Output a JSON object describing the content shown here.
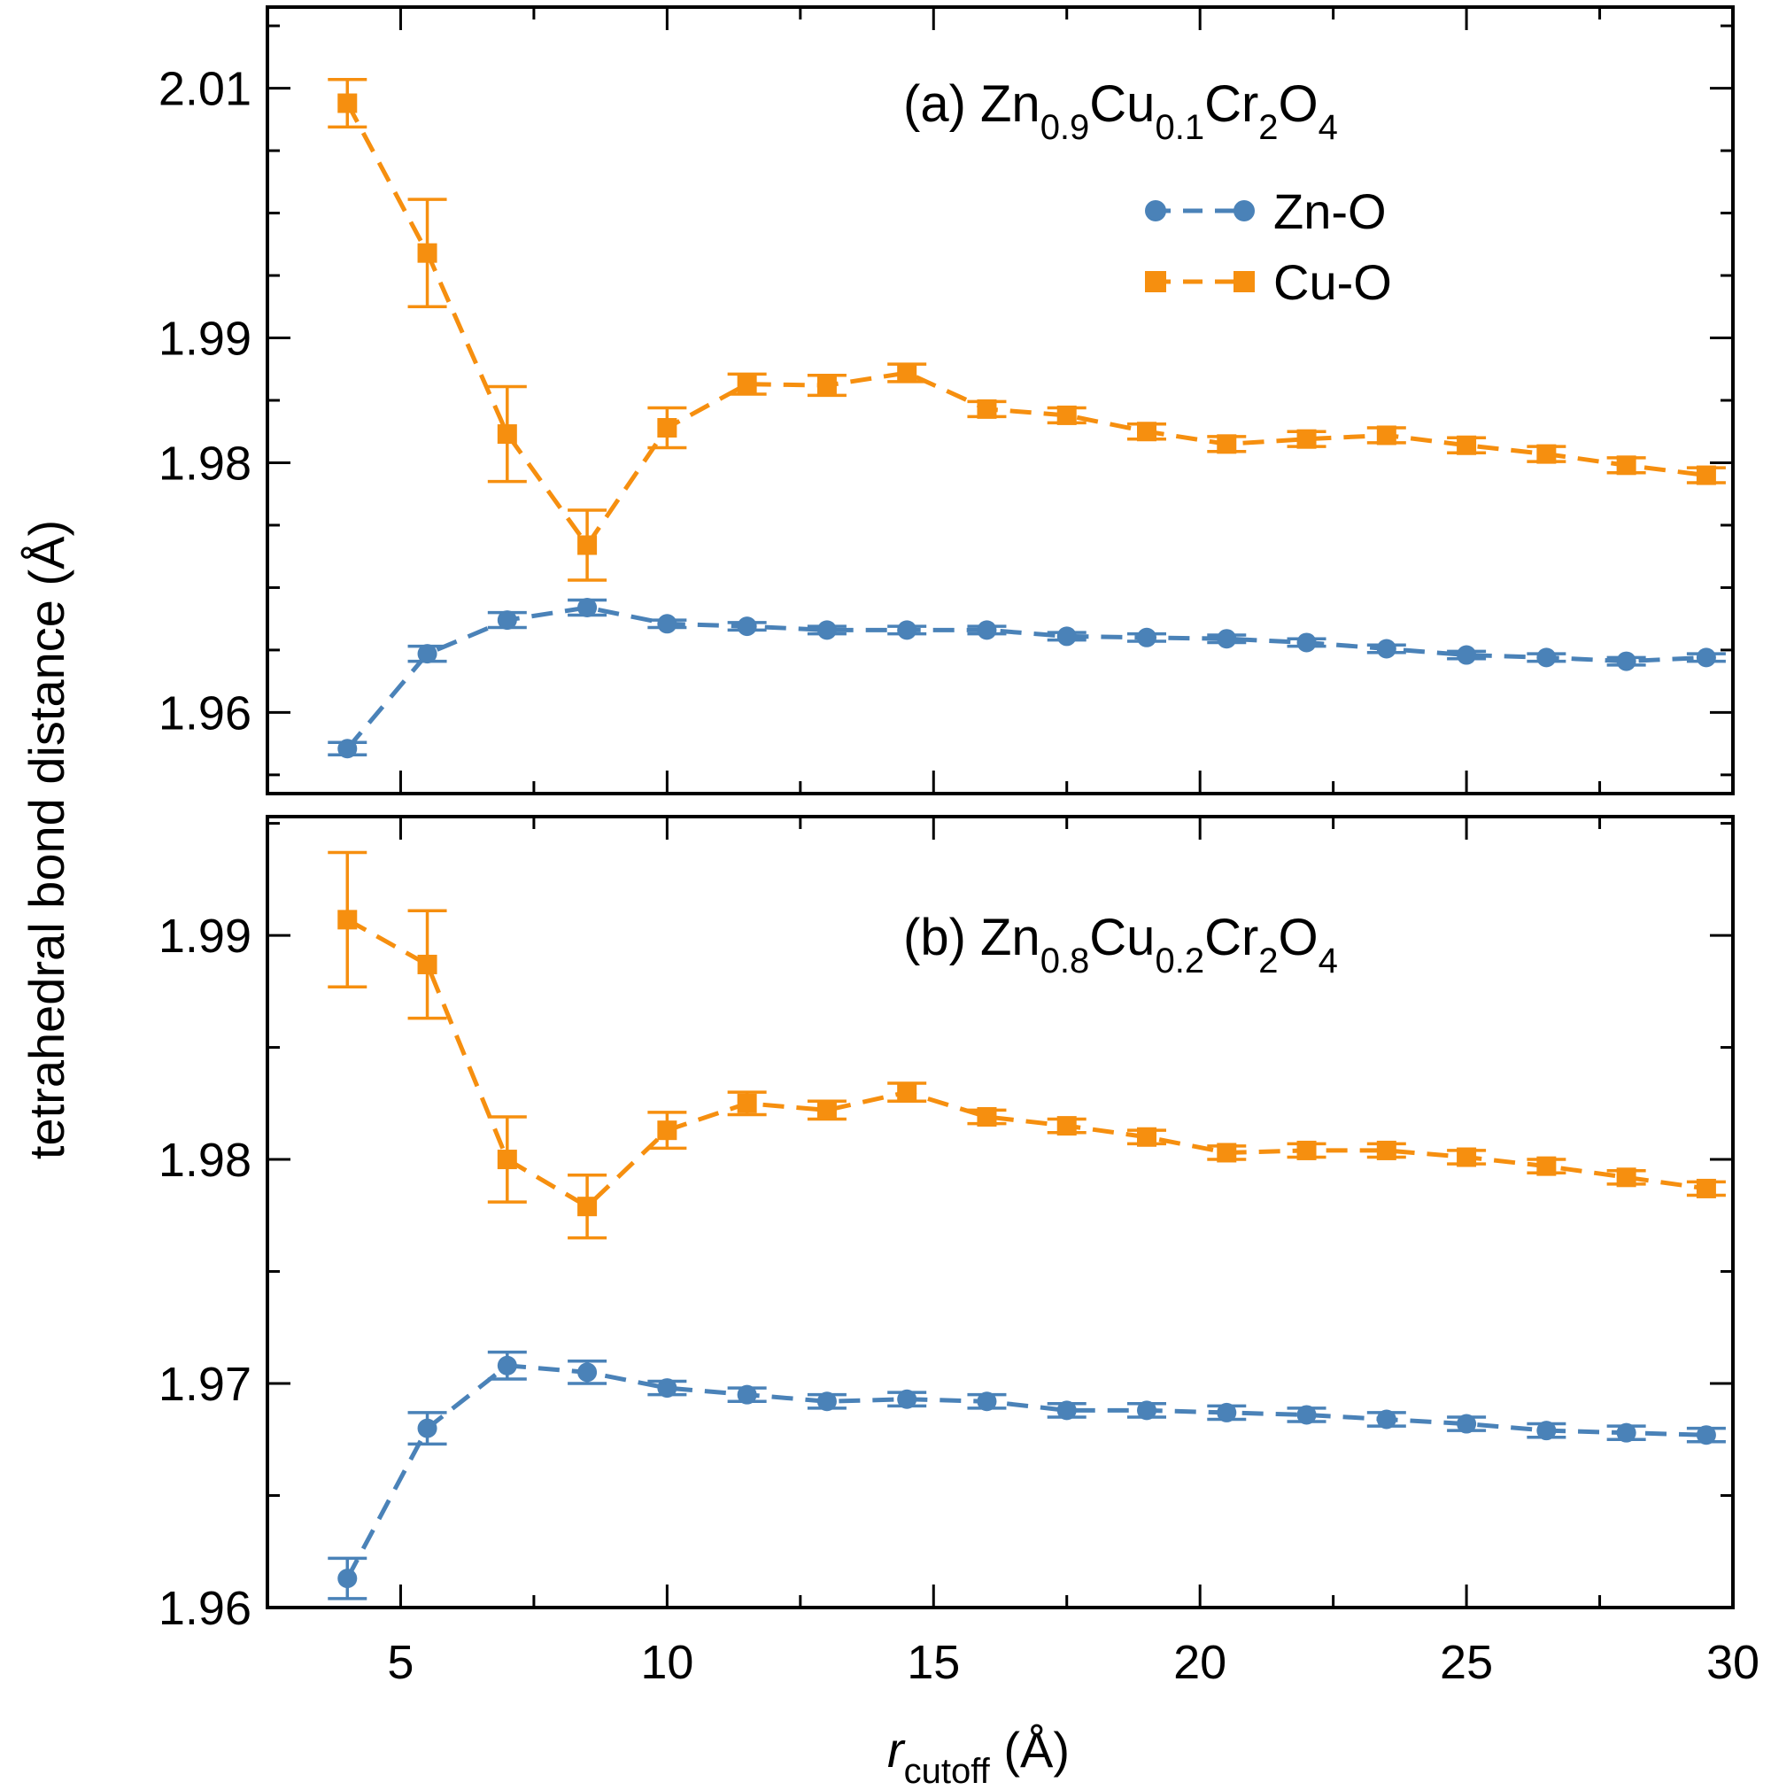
{
  "colors": {
    "zn": "#4a82b8",
    "cu": "#f68f0f",
    "axis": "#000000"
  },
  "chart_data": {
    "type": "line",
    "xlabel": {
      "main": "r",
      "sub": "cutoff",
      "unit": " (Å)"
    },
    "ylabel": "tetrahedral bond distance (Å)",
    "xlim": [
      2.5,
      30
    ],
    "xticks": [
      5,
      10,
      15,
      20,
      25,
      30
    ],
    "xtick_labels": [
      "5",
      "10",
      "15",
      "20",
      "25",
      "30"
    ],
    "legend": {
      "placement": "top-right of panel (a)",
      "entries": [
        "Zn-O",
        "Cu-O"
      ]
    },
    "panels": [
      {
        "id": "a",
        "title": {
          "prefix": "(a) Zn",
          "s1": "0.9",
          "p2": "Cu",
          "s2": "0.1",
          "p3": "Cr",
          "s3": "2",
          "p4": "O",
          "s4": "4"
        },
        "ylim": [
          1.9535,
          2.0165
        ],
        "yticks": [
          1.96,
          1.98,
          1.99,
          2.01
        ],
        "ytick_labels": [
          "1.96",
          "1.98",
          "1.99",
          "2.01"
        ],
        "series": [
          {
            "name": "Zn-O",
            "marker": "circle",
            "x": [
              4,
              5.5,
              7,
              8.5,
              10,
              11.5,
              13,
              14.5,
              16,
              17.5,
              19,
              20.5,
              22,
              23.5,
              25,
              26.5,
              28,
              29.5
            ],
            "y": [
              1.9571,
              1.9647,
              1.9674,
              1.9684,
              1.9671,
              1.9669,
              1.9666,
              1.9666,
              1.9666,
              1.9661,
              1.966,
              1.9659,
              1.9656,
              1.9651,
              1.9646,
              1.9644,
              1.9641,
              1.9644
            ],
            "err": [
              0.0005,
              0.0006,
              0.0006,
              0.0006,
              0.0003,
              0.0003,
              0.0003,
              0.0003,
              0.0003,
              0.0003,
              0.0003,
              0.0003,
              0.0003,
              0.0003,
              0.0003,
              0.0003,
              0.0003,
              0.0003
            ]
          },
          {
            "name": "Cu-O",
            "marker": "square",
            "x": [
              4,
              5.5,
              7,
              8.5,
              10,
              11.5,
              13,
              14.5,
              16,
              17.5,
              19,
              20.5,
              22,
              23.5,
              25,
              26.5,
              28,
              29.5
            ],
            "y": [
              2.0088,
              1.9968,
              1.9823,
              1.9734,
              1.9828,
              1.9863,
              1.9862,
              1.9872,
              1.9843,
              1.9838,
              1.9825,
              1.9815,
              1.9819,
              1.9822,
              1.9814,
              1.9807,
              1.9798,
              1.979
            ],
            "err": [
              0.0019,
              0.0043,
              0.0038,
              0.0028,
              0.0016,
              0.0008,
              0.0008,
              0.0007,
              0.0006,
              0.0006,
              0.0006,
              0.0006,
              0.0006,
              0.0006,
              0.0006,
              0.0006,
              0.0006,
              0.0006
            ]
          }
        ]
      },
      {
        "id": "b",
        "title": {
          "prefix": "(b) Zn",
          "s1": "0.8",
          "p2": "Cu",
          "s2": "0.2",
          "p3": "Cr",
          "s3": "2",
          "p4": "O",
          "s4": "4"
        },
        "ylim": [
          1.96,
          1.9953
        ],
        "yticks": [
          1.96,
          1.97,
          1.98,
          1.99
        ],
        "ytick_labels": [
          "1.96",
          "1.97",
          "1.98",
          "1.99"
        ],
        "series": [
          {
            "name": "Zn-O",
            "marker": "circle",
            "x": [
              4,
              5.5,
              7,
              8.5,
              10,
              11.5,
              13,
              14.5,
              16,
              17.5,
              19,
              20.5,
              22,
              23.5,
              25,
              26.5,
              28,
              29.5
            ],
            "y": [
              1.9613,
              1.968,
              1.9708,
              1.9705,
              1.9698,
              1.9695,
              1.9692,
              1.9693,
              1.9692,
              1.9688,
              1.9688,
              1.9687,
              1.9686,
              1.9684,
              1.9682,
              1.9679,
              1.9678,
              1.9677
            ],
            "err": [
              0.0009,
              0.0007,
              0.0006,
              0.0005,
              0.0003,
              0.0003,
              0.0003,
              0.0003,
              0.0003,
              0.0003,
              0.0003,
              0.0003,
              0.0003,
              0.0003,
              0.0003,
              0.0003,
              0.0003,
              0.0003
            ]
          },
          {
            "name": "Cu-O",
            "marker": "square",
            "x": [
              4,
              5.5,
              7,
              8.5,
              10,
              11.5,
              13,
              14.5,
              16,
              17.5,
              19,
              20.5,
              22,
              23.5,
              25,
              26.5,
              28,
              29.5
            ],
            "y": [
              1.9907,
              1.9887,
              1.98,
              1.9779,
              1.9813,
              1.9825,
              1.9822,
              1.983,
              1.9819,
              1.9815,
              1.981,
              1.9803,
              1.9804,
              1.9804,
              1.9801,
              1.9797,
              1.9792,
              1.9787
            ],
            "err": [
              0.003,
              0.0024,
              0.0019,
              0.0014,
              0.0008,
              0.0005,
              0.0004,
              0.0004,
              0.0003,
              0.0003,
              0.0003,
              0.0003,
              0.0003,
              0.0003,
              0.0003,
              0.0003,
              0.0003,
              0.0003
            ]
          }
        ]
      }
    ]
  }
}
